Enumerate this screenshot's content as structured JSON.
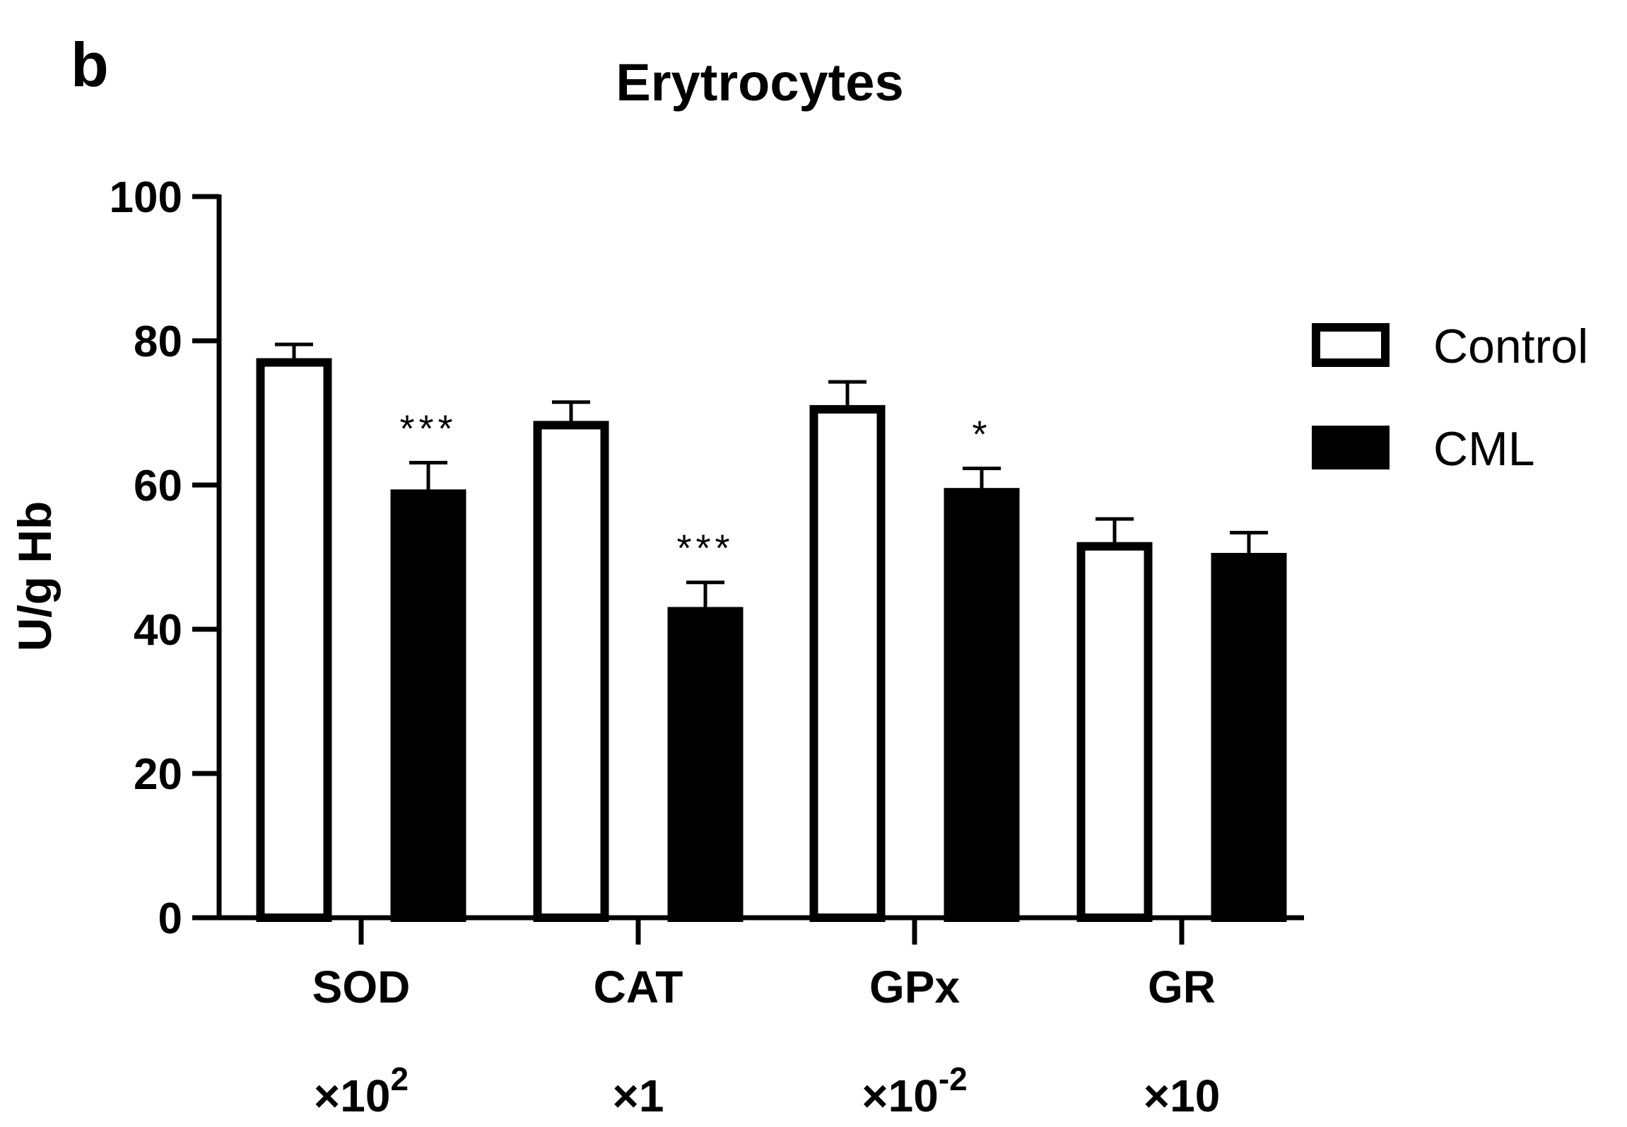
{
  "panel_label": "b",
  "chart_data": {
    "type": "bar",
    "title": "Erytrocytes",
    "ylabel": "U/g Hb",
    "xlabel": "",
    "ylim": [
      0,
      100
    ],
    "yticks": [
      0,
      20,
      40,
      60,
      80,
      100
    ],
    "categories": [
      "SOD",
      "CAT",
      "GPx",
      "GR"
    ],
    "category_scales": [
      {
        "base": "×10",
        "exp": "2"
      },
      {
        "base": "×1",
        "exp": ""
      },
      {
        "base": "×10",
        "exp": "-2"
      },
      {
        "base": "×10",
        "exp": ""
      }
    ],
    "series": [
      {
        "name": "Control",
        "fill": "#ffffff",
        "values": [
          77,
          68.3,
          70.5,
          51.5
        ],
        "errors": [
          2.5,
          3.2,
          3.8,
          3.8
        ],
        "significance": [
          "",
          "",
          "",
          ""
        ]
      },
      {
        "name": "CML",
        "fill": "#000000",
        "values": [
          58.8,
          42.5,
          59,
          50
        ],
        "errors": [
          4.3,
          4.0,
          3.3,
          3.4
        ],
        "significance": [
          "***",
          "***",
          "*",
          ""
        ]
      }
    ],
    "legend_position": "right",
    "grid": false,
    "colors": {
      "stroke": "#000000",
      "control_fill": "#ffffff",
      "cml_fill": "#000000"
    }
  }
}
